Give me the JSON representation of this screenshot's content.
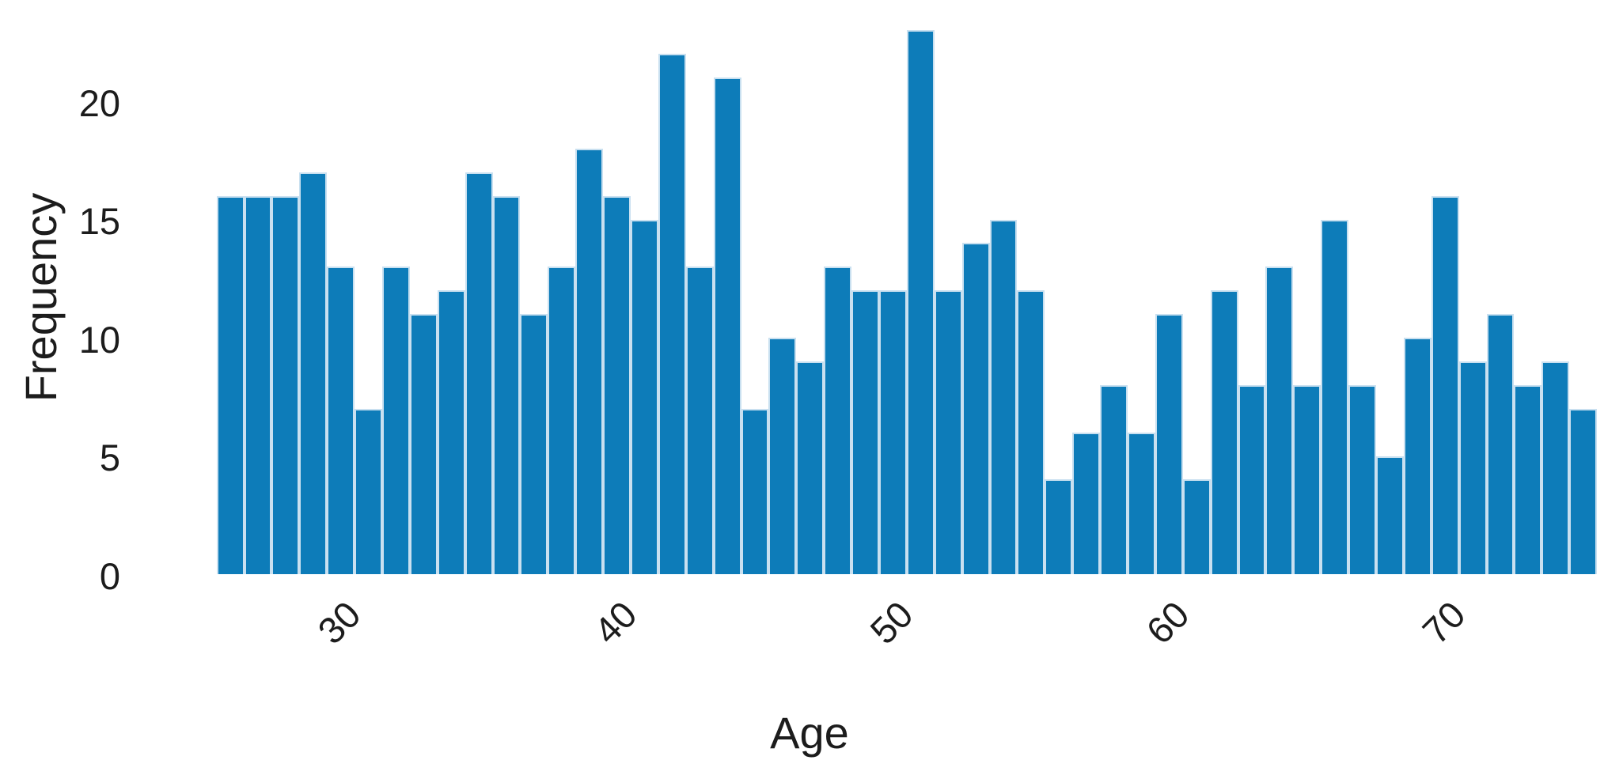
{
  "chart_data": {
    "type": "bar",
    "subtype": "histogram",
    "title": "",
    "xlabel": "Age",
    "ylabel": "Frequency",
    "bin_start": 25.5,
    "bin_width": 1,
    "bin_count": 50,
    "values": [
      16,
      16,
      16,
      17,
      13,
      7,
      13,
      11,
      12,
      17,
      16,
      11,
      13,
      18,
      16,
      15,
      22,
      13,
      21,
      7,
      10,
      9,
      13,
      12,
      12,
      23,
      12,
      14,
      15,
      12,
      4,
      6,
      8,
      6,
      11,
      4,
      12,
      8,
      13,
      8,
      15,
      8,
      5,
      10,
      16,
      9,
      11,
      8,
      9,
      7
    ],
    "xticks": [
      30,
      40,
      50,
      60,
      70
    ],
    "yticks": [
      0,
      5,
      10,
      15,
      20
    ],
    "ylim": [
      0,
      24.3
    ],
    "grid": false,
    "legend_position": "none",
    "bar_color": "#0d7cb9",
    "bar_edge_color": "#c9e0f0",
    "text_color": "#1c1c1c",
    "background_color": "#ffffff"
  }
}
